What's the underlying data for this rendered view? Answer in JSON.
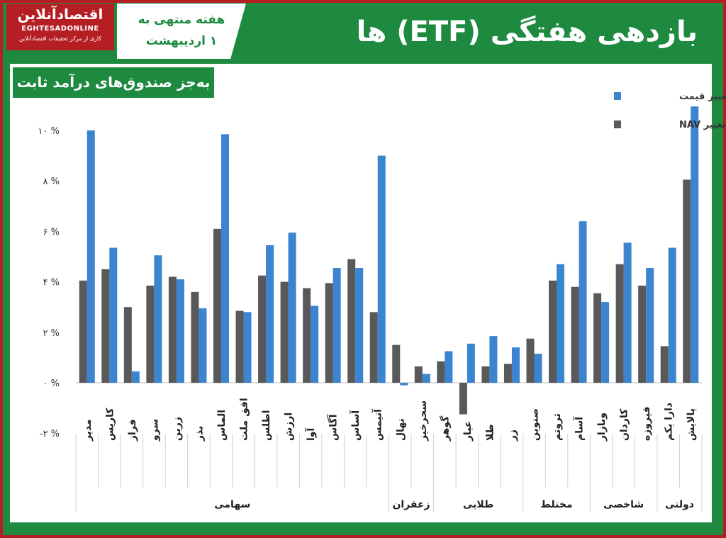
{
  "header": {
    "logo_name": "اقتصادآنلاین",
    "logo_site": "EGHTESADONLINE",
    "logo_tagline": "کاری از مرکز تحقیقات اقتصادآنلاین",
    "week_line1": "هفته منتهی به",
    "week_line2": "۱ اردیبهشت",
    "title": "بازدهی هفتگی (ETF) ها",
    "subtitle": "به‌جز صندوق‌های درآمد ثابت"
  },
  "colors": {
    "price": "#3a84d0",
    "nav": "#595959",
    "green": "#1d8a3f",
    "red": "#b51f24"
  },
  "chart_data": {
    "type": "bar",
    "title": "بازدهی هفتگی (ETF) ها",
    "ylim": [
      -2,
      10.5
    ],
    "yticks": [
      -2,
      0,
      2,
      4,
      6,
      8,
      10
    ],
    "ytick_labels": [
      "-۲ %",
      "۰ %",
      "۲ %",
      "۴ %",
      "۶ %",
      "۸ %",
      "۱۰ %"
    ],
    "legend_position": "top-right",
    "grid": false,
    "categories": [
      "مدیر",
      "کاریس",
      "فراز",
      "سرو",
      "زرین",
      "بذر",
      "الماس",
      "افق ملت",
      "اطلس",
      "ارزش",
      "آوا",
      "آگاس",
      "آساس",
      "آتیمس",
      "نهال",
      "سحرخیز",
      "گوهر",
      "عیار",
      "طلا",
      "زر",
      "صنوین",
      "ثروتم",
      "آسام",
      "وبازار",
      "کاردان",
      "فیروزه",
      "دارا یکم",
      "پالایش"
    ],
    "series": [
      {
        "name": "تغییر NAV",
        "values": [
          4.05,
          4.5,
          3.0,
          3.85,
          4.2,
          3.6,
          6.1,
          2.85,
          4.25,
          4.0,
          3.75,
          3.95,
          4.9,
          2.8,
          1.5,
          0.65,
          0.85,
          -1.25,
          0.65,
          0.75,
          1.75,
          4.05,
          3.8,
          3.55,
          4.7,
          3.85,
          1.45,
          8.05
        ]
      },
      {
        "name": "تغییر قیمت",
        "values": [
          10.0,
          5.35,
          0.45,
          5.05,
          4.1,
          2.95,
          9.85,
          2.8,
          5.45,
          5.95,
          3.05,
          4.55,
          4.55,
          9.0,
          -0.1,
          0.35,
          1.25,
          1.55,
          1.85,
          1.4,
          1.15,
          4.7,
          6.4,
          3.2,
          5.55,
          4.55,
          5.35,
          10.95
        ]
      }
    ],
    "groups": [
      {
        "name": "سهامی",
        "count": 14
      },
      {
        "name": "زعفران",
        "count": 2
      },
      {
        "name": "طلایی",
        "count": 4
      },
      {
        "name": "مختلط",
        "count": 3
      },
      {
        "name": "شاخصی",
        "count": 3
      },
      {
        "name": "دولتی",
        "count": 2
      }
    ]
  }
}
